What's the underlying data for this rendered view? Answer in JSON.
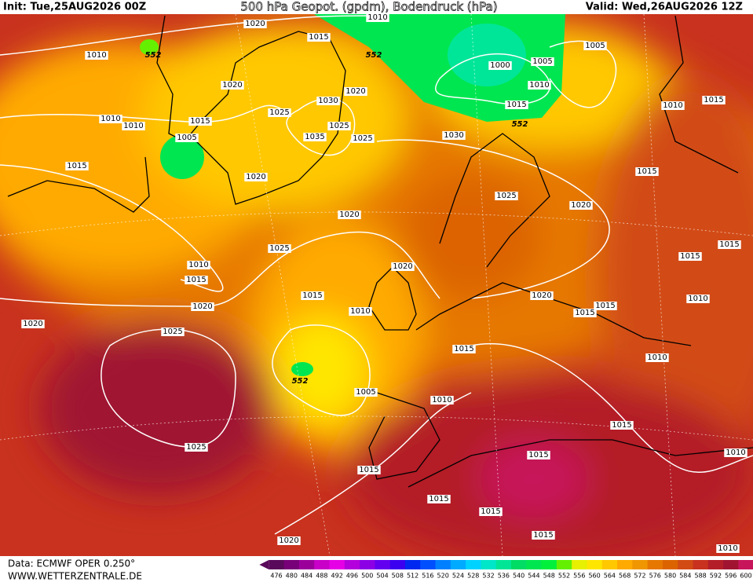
{
  "header": {
    "init": "Init: Tue,25AUG2026 00Z",
    "title": "500 hPa Geopot. (gpdm), Bodendruck (hPa)",
    "valid": "Valid: Wed,26AUG2026 12Z"
  },
  "map": {
    "isobar_labels": [
      "1010",
      "1020",
      "1015",
      "552",
      "1010",
      "552",
      "1000",
      "1005",
      "1005",
      "1020",
      "1020",
      "1010",
      "1030",
      "1015",
      "1010",
      "1015",
      "1010",
      "1015",
      "1025",
      "1010",
      "1025",
      "552",
      "1005",
      "1035",
      "1025",
      "1030",
      "1015",
      "1020",
      "1015",
      "1025",
      "1020",
      "1020",
      "1025",
      "1015",
      "1015",
      "1010",
      "1015",
      "1020",
      "1015",
      "1020",
      "1015",
      "1010",
      "1015",
      "1020",
      "1010",
      "1020",
      "1025",
      "1015",
      "1010",
      "552",
      "1005",
      "1010",
      "1015",
      "1025",
      "1015",
      "1010",
      "1015",
      "1015",
      "1015",
      "1015",
      "1020",
      "1010"
    ]
  },
  "colorbar": {
    "values": [
      476,
      480,
      484,
      488,
      492,
      496,
      500,
      504,
      508,
      512,
      516,
      520,
      524,
      528,
      532,
      536,
      540,
      544,
      548,
      552,
      556,
      560,
      564,
      568,
      572,
      576,
      580,
      584,
      588,
      592,
      596,
      600
    ],
    "colors": [
      "#5a0a5a",
      "#780078",
      "#9b009b",
      "#c800c8",
      "#e600e6",
      "#b400dc",
      "#8c00e6",
      "#6400f0",
      "#3c00f0",
      "#0028f0",
      "#0050ff",
      "#0080ff",
      "#00aaff",
      "#00d2ff",
      "#00e6c8",
      "#00e696",
      "#00dc64",
      "#00e650",
      "#00f03c",
      "#64f000",
      "#e6f000",
      "#ffe600",
      "#ffc800",
      "#ffaa00",
      "#f09600",
      "#e67800",
      "#dc6400",
      "#d24b14",
      "#c8321e",
      "#b41e28",
      "#a01432",
      "#c8145a"
    ]
  },
  "footer": {
    "data_source": "Data: ECMWF OPER 0.250°",
    "website": "WWW.WETTERZENTRALE.DE"
  }
}
